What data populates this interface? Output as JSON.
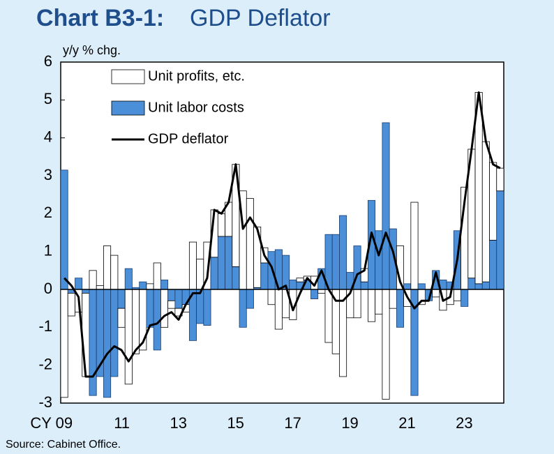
{
  "chart_data": {
    "type": "bar-line",
    "chart_id": "Chart B3-1:",
    "title": "GDP Deflator",
    "ylabel": "y/y % chg.",
    "source": "Source: Cabinet Office.",
    "categories": [
      "CY 09",
      null,
      null,
      null,
      null,
      null,
      null,
      null,
      "11",
      null,
      null,
      null,
      null,
      null,
      null,
      null,
      "13",
      null,
      null,
      null,
      null,
      null,
      null,
      null,
      "15",
      null,
      null,
      null,
      null,
      null,
      null,
      null,
      "17",
      null,
      null,
      null,
      null,
      null,
      null,
      null,
      "19",
      null,
      null,
      null,
      null,
      null,
      null,
      null,
      "21",
      null,
      null,
      null,
      null,
      null,
      null,
      null,
      "23",
      null,
      null,
      null,
      null,
      null
    ],
    "series": [
      {
        "name": "Unit profits, etc.",
        "type": "bar",
        "color": "#ffffff",
        "values": [
          -2.85,
          -0.6,
          -0.6,
          -2.2,
          0.5,
          0.1,
          1.15,
          0.9,
          -0.5,
          -2.5,
          -1.7,
          -1.6,
          0.15,
          0.7,
          -1.0,
          -0.2,
          -0.2,
          -0.2,
          1.25,
          0.8,
          1.25,
          1.25,
          0.6,
          0.9,
          2.7,
          2.6,
          2.4,
          1.6,
          0.4,
          -0.4,
          -1.05,
          -0.75,
          -0.8,
          0.1,
          0.1,
          0.35,
          -0.1,
          -1.4,
          -1.7,
          -2.3,
          -0.75,
          -0.75,
          0.35,
          -0.85,
          -0.65,
          -2.9,
          -0.5,
          1.15,
          -0.45,
          2.3,
          -0.4,
          0.0,
          -0.2,
          -0.55,
          -0.4,
          -0.3,
          2.7,
          3.4,
          5.05,
          3.7,
          2.05,
          0.6
        ]
      },
      {
        "name": "Unit labor costs",
        "type": "bar",
        "color": "#4a8fd8",
        "values": [
          3.15,
          -0.1,
          0.3,
          -0.1,
          -2.8,
          -2.3,
          -2.85,
          -2.3,
          -0.5,
          0.55,
          0.05,
          0.2,
          -1.0,
          -1.6,
          0.25,
          -0.3,
          -0.5,
          -0.4,
          -1.35,
          -0.9,
          -0.95,
          0.85,
          1.4,
          1.4,
          0.6,
          -1.0,
          -0.5,
          0.05,
          0.7,
          1.0,
          1.05,
          0.9,
          0.25,
          0.2,
          0.25,
          -0.25,
          0.55,
          1.45,
          1.45,
          1.95,
          0.45,
          1.15,
          0.2,
          2.35,
          1.55,
          4.4,
          1.6,
          -1.0,
          0.15,
          -2.8,
          0.15,
          -0.3,
          0.5,
          0.25,
          0.2,
          1.55,
          -0.45,
          0.3,
          0.15,
          0.2,
          1.3,
          2.6
        ]
      },
      {
        "name": "GDP deflator",
        "type": "line",
        "color": "#000000",
        "values": [
          0.3,
          0.1,
          -0.2,
          -2.3,
          -2.3,
          -2.0,
          -1.7,
          -1.5,
          -1.6,
          -1.9,
          -1.6,
          -1.4,
          -0.95,
          -0.9,
          -0.7,
          -0.6,
          -0.8,
          -0.4,
          -0.1,
          -0.1,
          0.3,
          2.1,
          2.0,
          2.3,
          3.3,
          1.6,
          1.9,
          1.6,
          0.9,
          0.6,
          0.0,
          0.1,
          -0.55,
          -0.1,
          0.3,
          0.1,
          0.5,
          0.0,
          -0.3,
          -0.3,
          -0.1,
          0.4,
          0.5,
          1.5,
          0.9,
          1.5,
          1.0,
          0.2,
          -0.2,
          -0.5,
          -0.3,
          -0.3,
          0.45,
          -0.3,
          -0.2,
          0.8,
          2.3,
          3.7,
          5.2,
          3.9,
          3.3,
          3.2
        ]
      }
    ],
    "ylim": [
      -3,
      6
    ],
    "yticks": [
      -3,
      -2,
      -1,
      0,
      1,
      2,
      3,
      4,
      5,
      6
    ]
  }
}
